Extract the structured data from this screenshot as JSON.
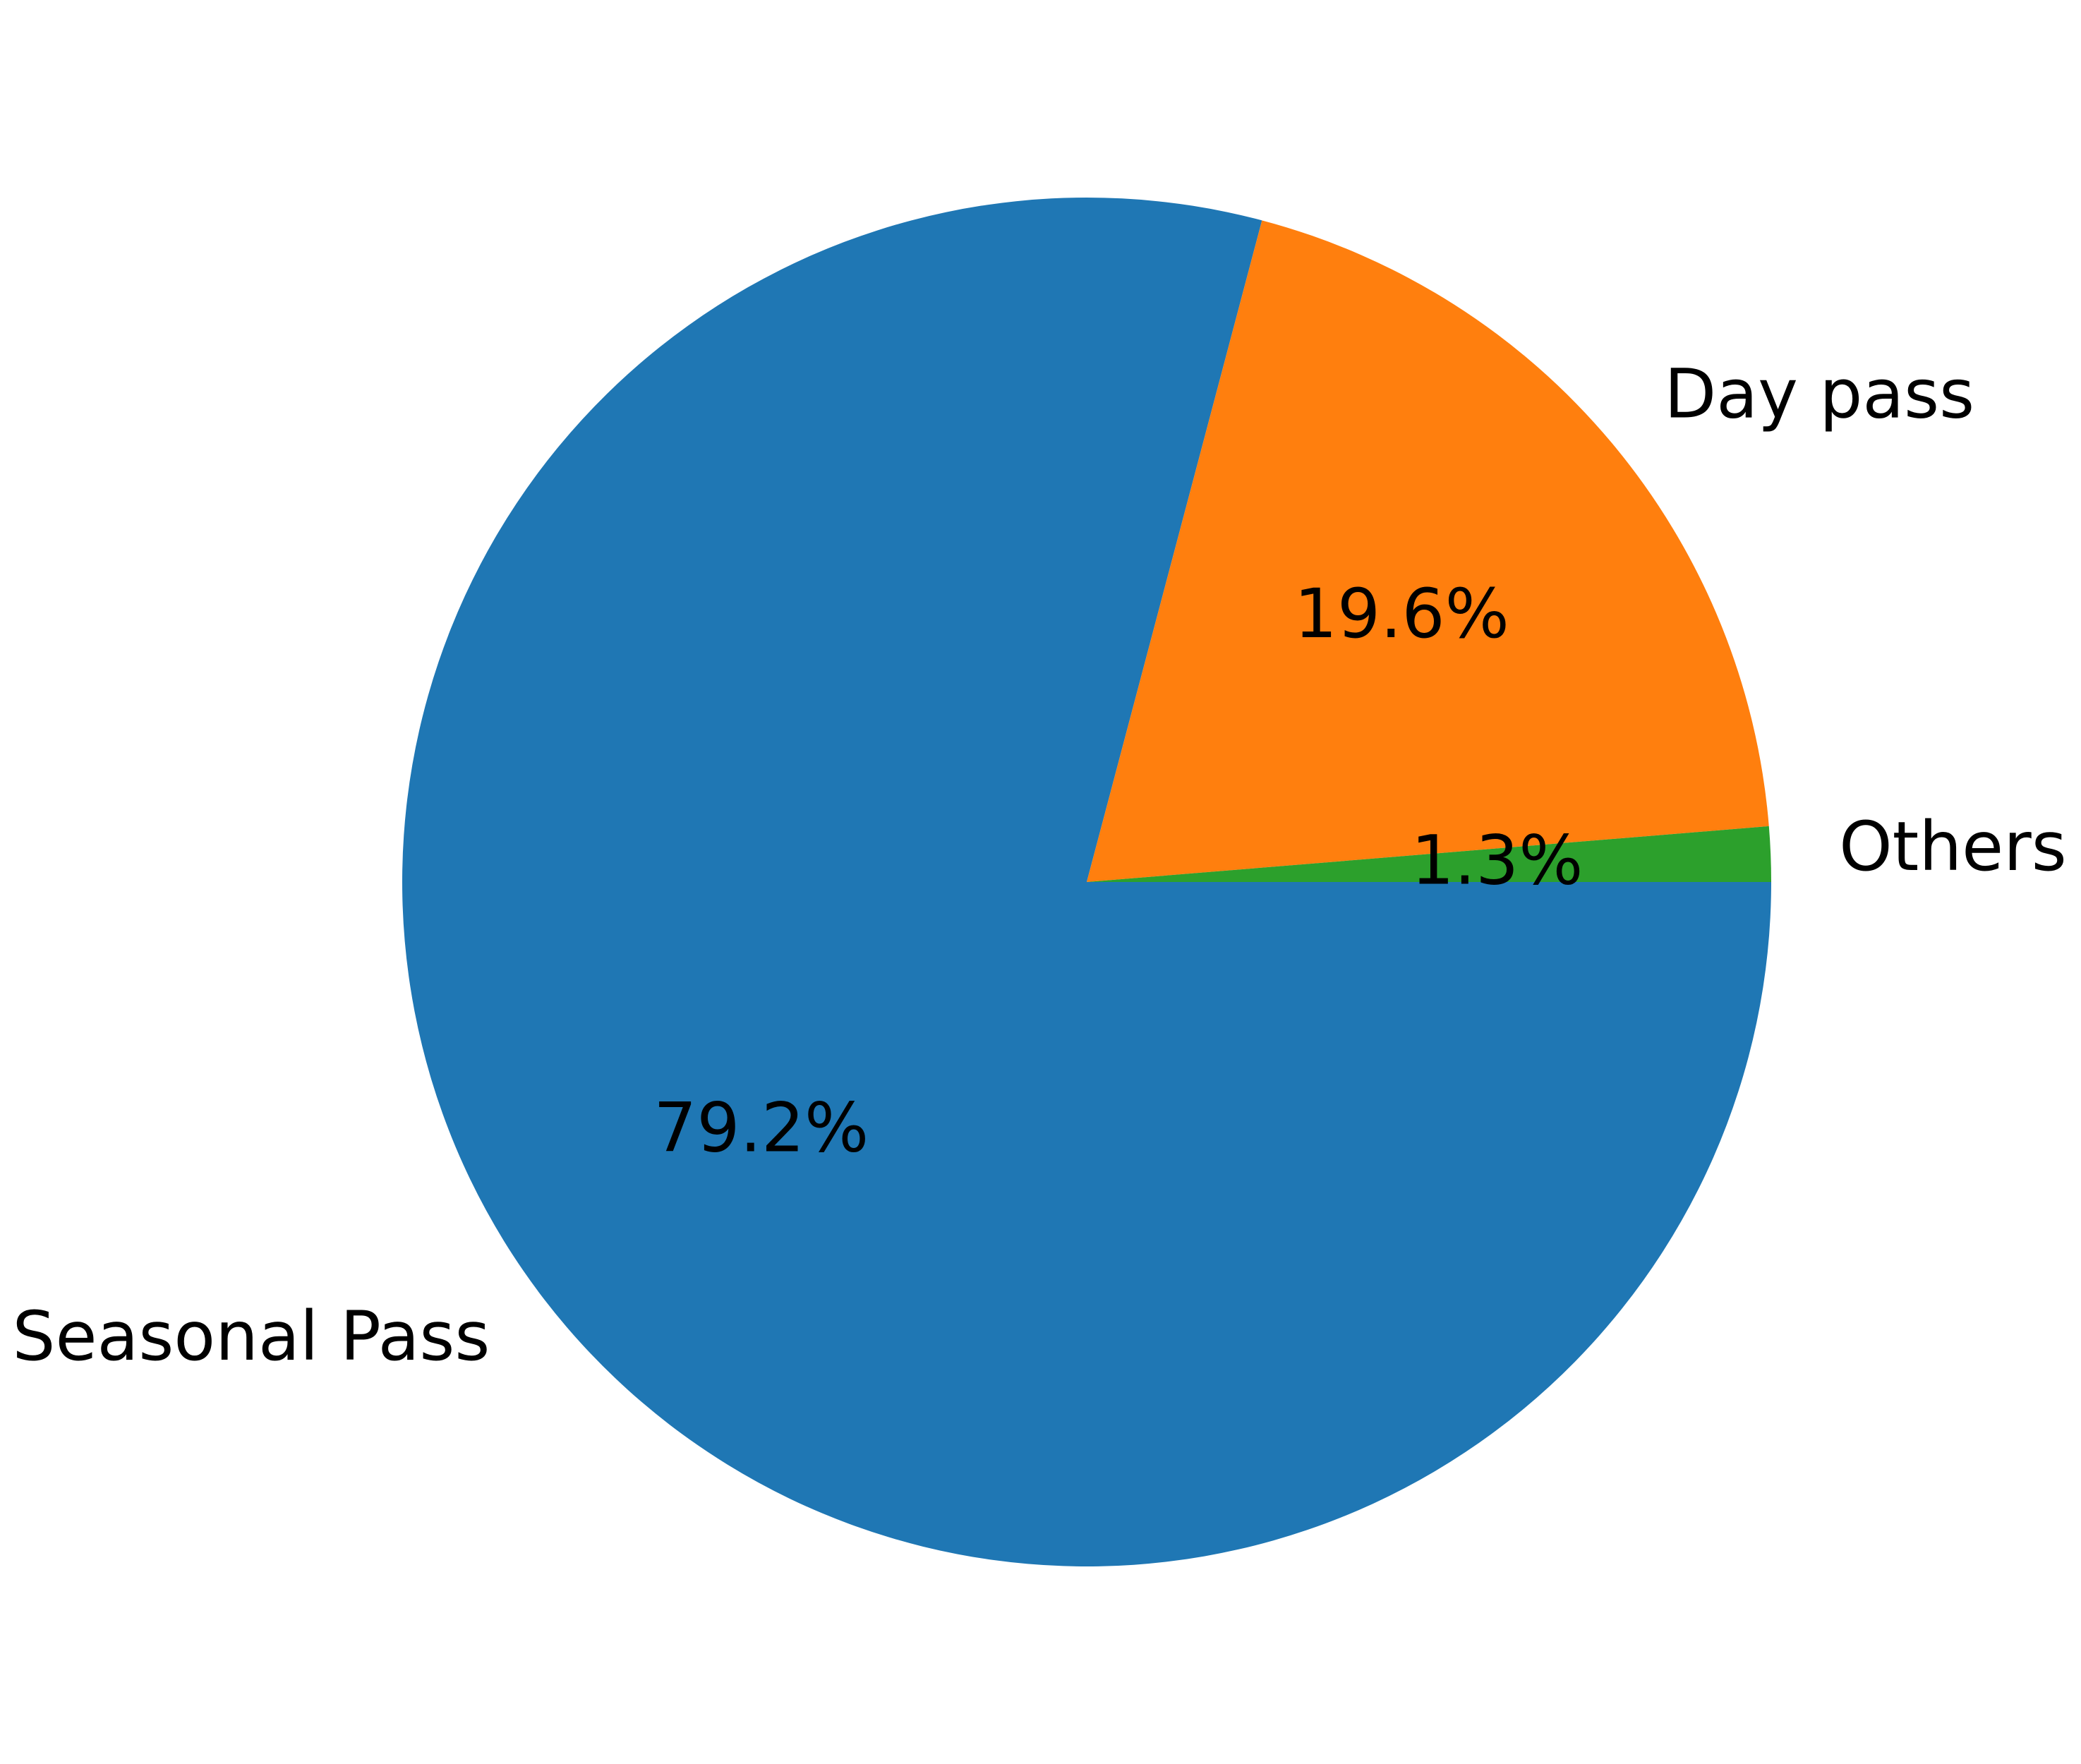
{
  "chart_data": {
    "type": "pie",
    "categories": [
      "Seasonal Pass",
      "Day pass",
      "Others"
    ],
    "values": [
      79.2,
      19.6,
      1.3
    ],
    "percent_labels": [
      "79.2%",
      "19.6%",
      "1.3%"
    ],
    "colors": [
      "#1f77b4",
      "#ff7f0e",
      "#2ca02c"
    ],
    "start_angle_deg": 0,
    "direction": "clockwise",
    "legend": "none"
  }
}
